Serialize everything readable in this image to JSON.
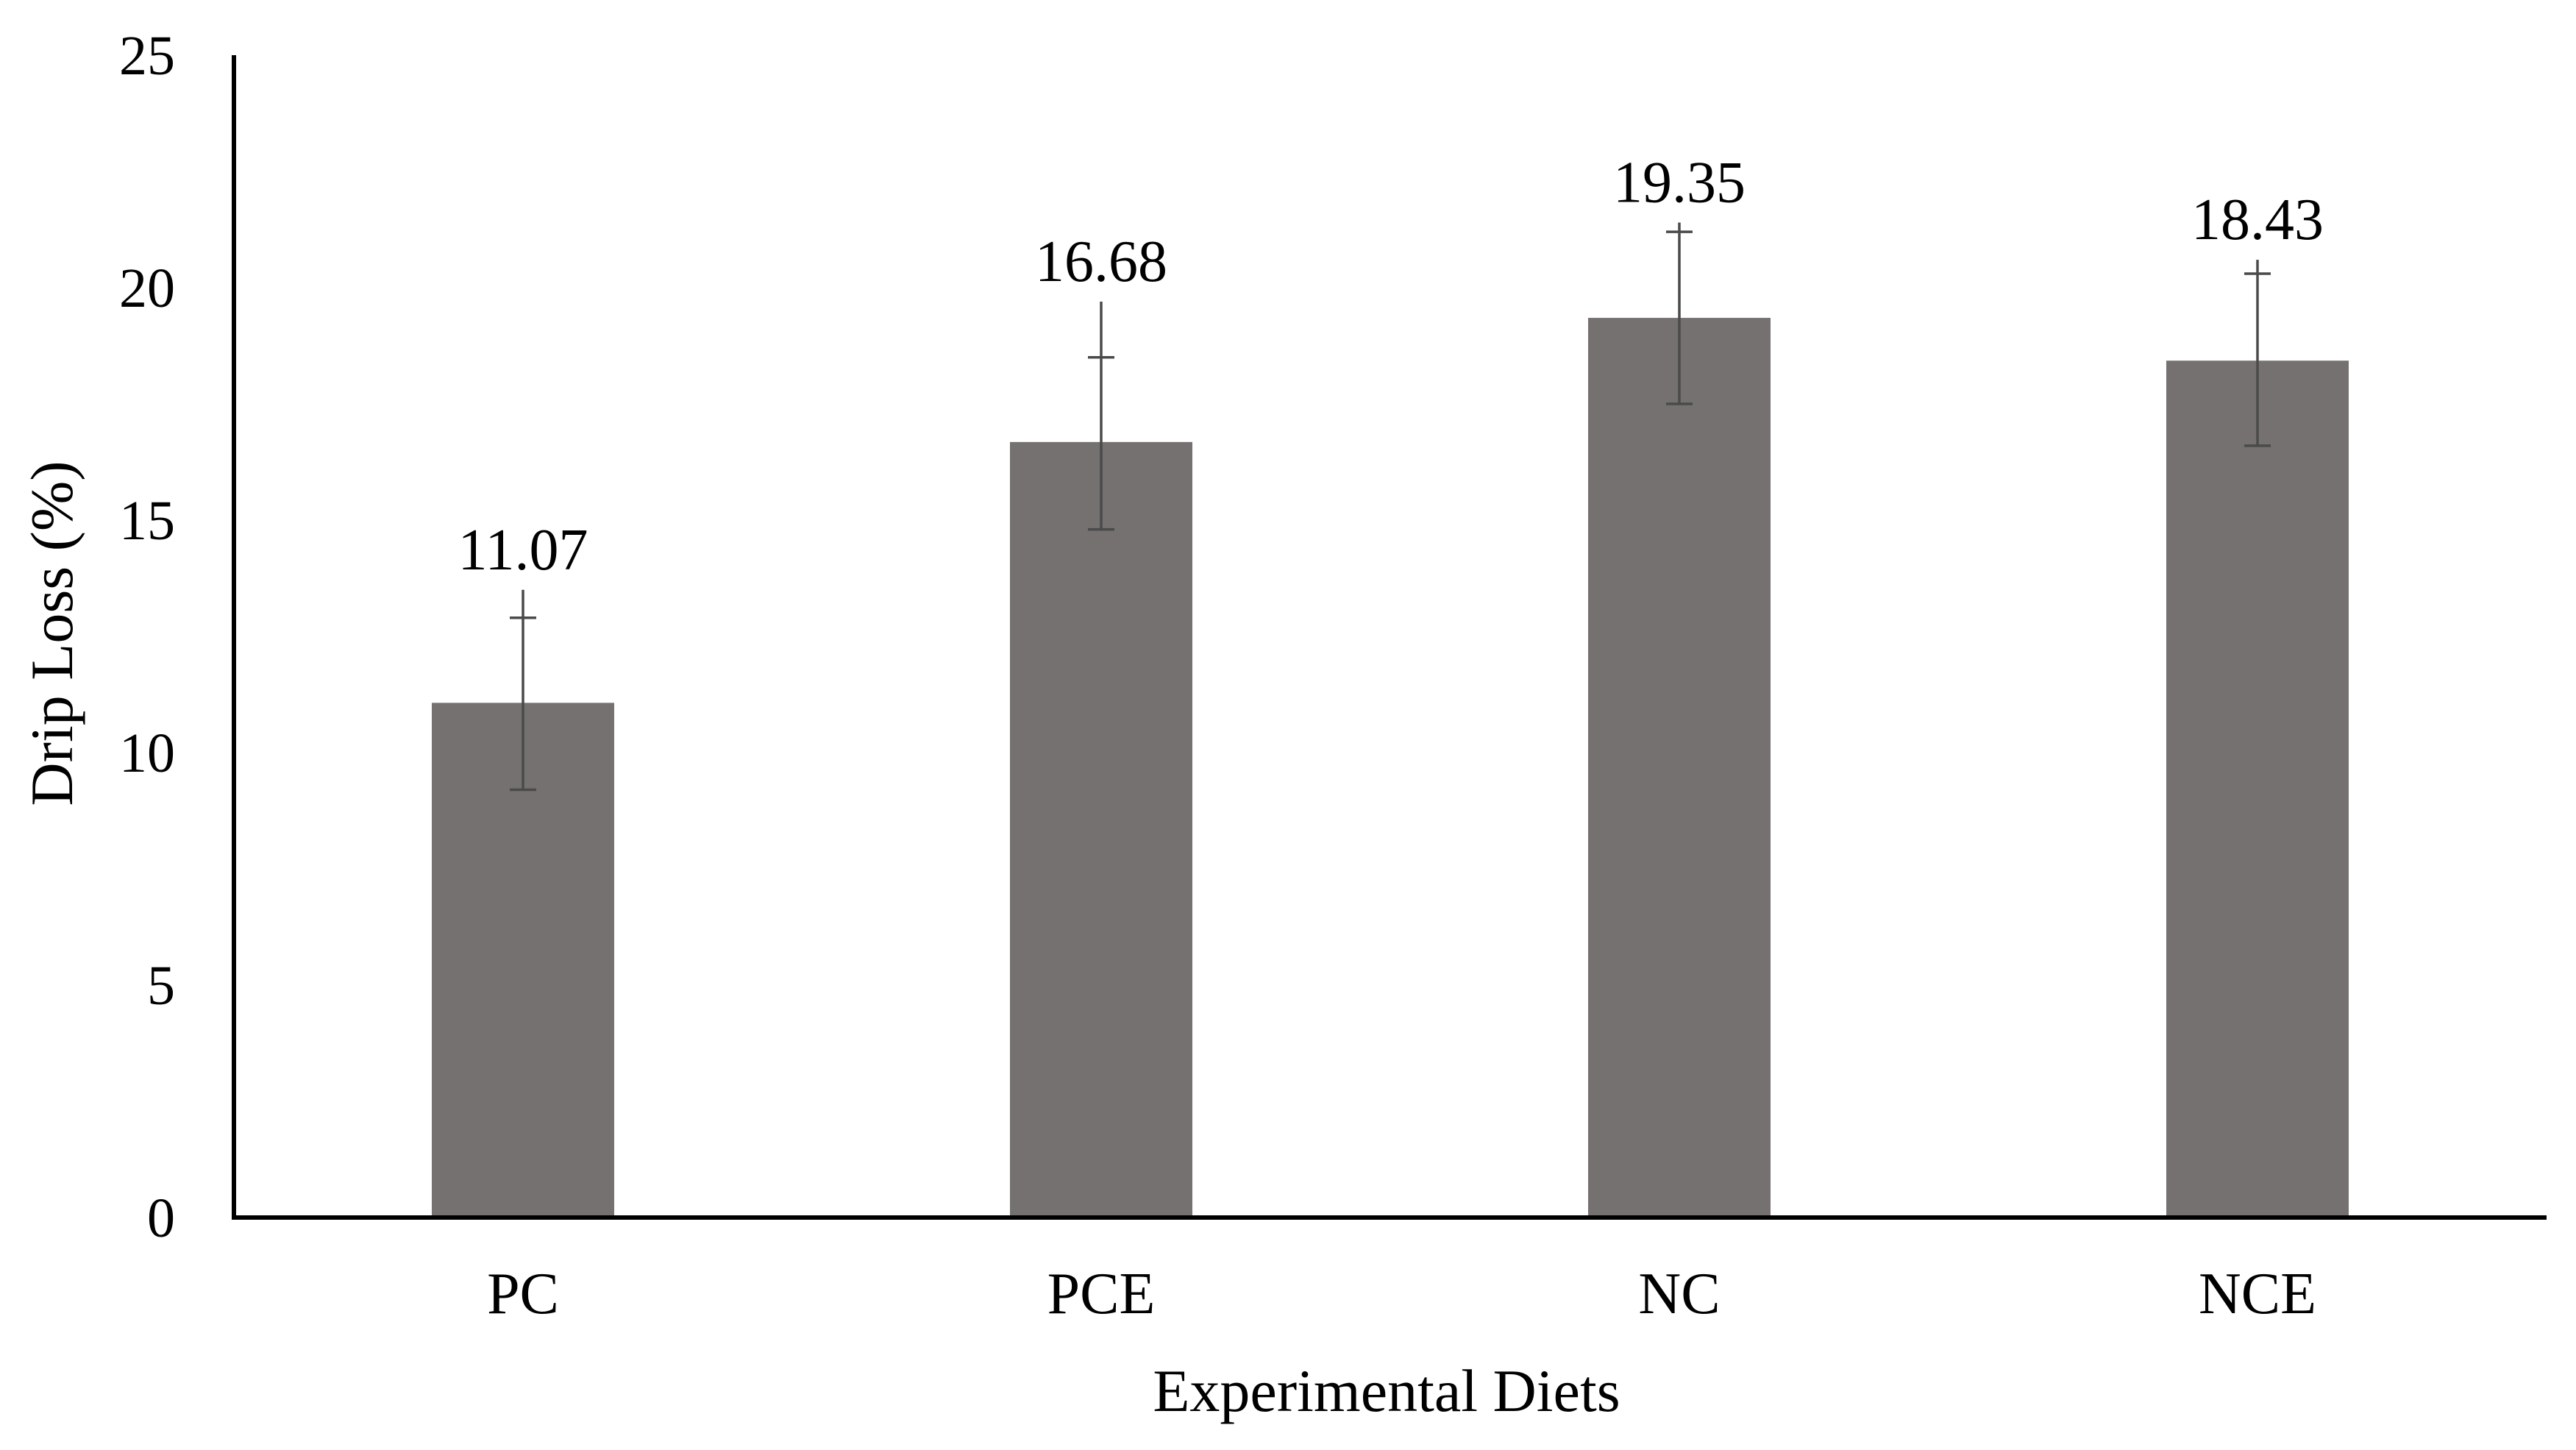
{
  "chart_data": {
    "type": "bar",
    "title": "",
    "xlabel": "Experimental Diets",
    "ylabel": "Drip Loss (%)",
    "categories": [
      "PC",
      "PCE",
      "NC",
      "NCE"
    ],
    "values": [
      11.07,
      16.68,
      19.35,
      18.43
    ],
    "value_labels": [
      "11.07",
      "16.68",
      "19.35",
      "18.43"
    ],
    "error_bars": {
      "lower": [
        9.2,
        14.8,
        17.5,
        16.6
      ],
      "upper": [
        12.9,
        18.5,
        21.2,
        20.3
      ],
      "whisker_tops": [
        13.5,
        19.7,
        21.4,
        20.6
      ]
    },
    "ylim": [
      0,
      25
    ],
    "yticks": [
      0,
      5,
      10,
      15,
      20,
      25
    ],
    "ytick_labels": [
      "0",
      "5",
      "10",
      "15",
      "20",
      "25"
    ],
    "grid": false,
    "legend": "none"
  },
  "colors": {
    "bar": "#757170",
    "axis": "#000000",
    "error_bar": "#4a4a4a",
    "background": "#ffffff"
  }
}
